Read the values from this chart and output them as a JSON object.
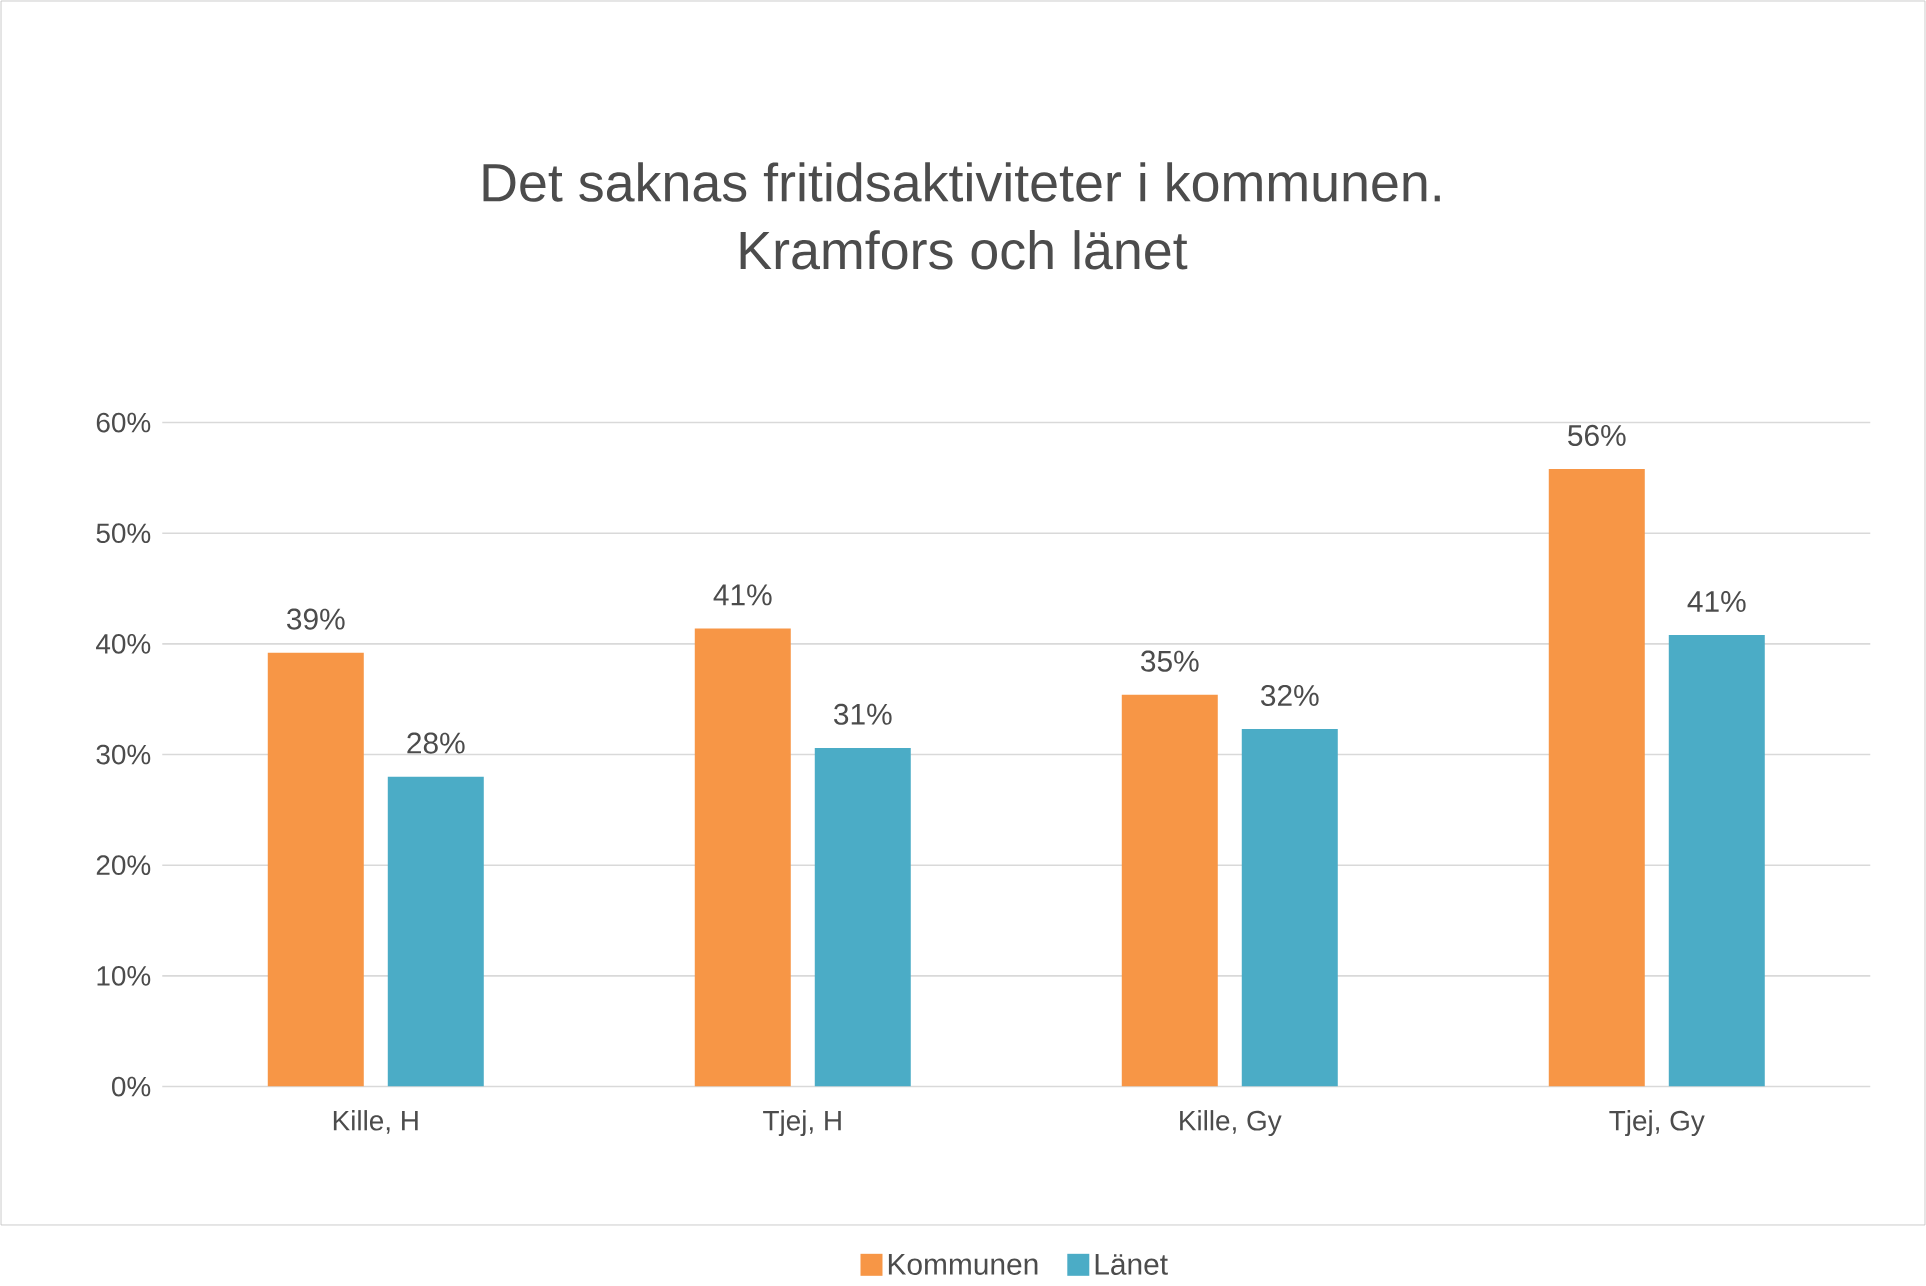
{
  "chart_data": {
    "type": "bar",
    "title": "Det saknas fritidsaktiviteter i kommunen.\nKramfors och länet",
    "categories": [
      "Kille, H",
      "Tjej, H",
      "Kille, Gy",
      "Tjej, Gy"
    ],
    "series": [
      {
        "name": "Kommunen",
        "color": "#f79646",
        "values": [
          39.2,
          41.4,
          35.4,
          55.8
        ],
        "value_labels": [
          "39%",
          "41%",
          "35%",
          "56%"
        ]
      },
      {
        "name": "Länet",
        "color": "#4bacc6",
        "values": [
          28,
          30.6,
          32.3,
          40.8
        ],
        "value_labels": [
          "28%",
          "31%",
          "32%",
          "41%"
        ]
      }
    ],
    "ylim": [
      0,
      60
    ],
    "yticks": [
      {
        "value": 0,
        "label": "0%"
      },
      {
        "value": 10,
        "label": "10%"
      },
      {
        "value": 20,
        "label": "20%"
      },
      {
        "value": 30,
        "label": "30%"
      },
      {
        "value": 40,
        "label": "40%"
      },
      {
        "value": 50,
        "label": "50%"
      },
      {
        "value": 60,
        "label": "60%"
      }
    ],
    "grid": "y",
    "legend": "bottom"
  }
}
